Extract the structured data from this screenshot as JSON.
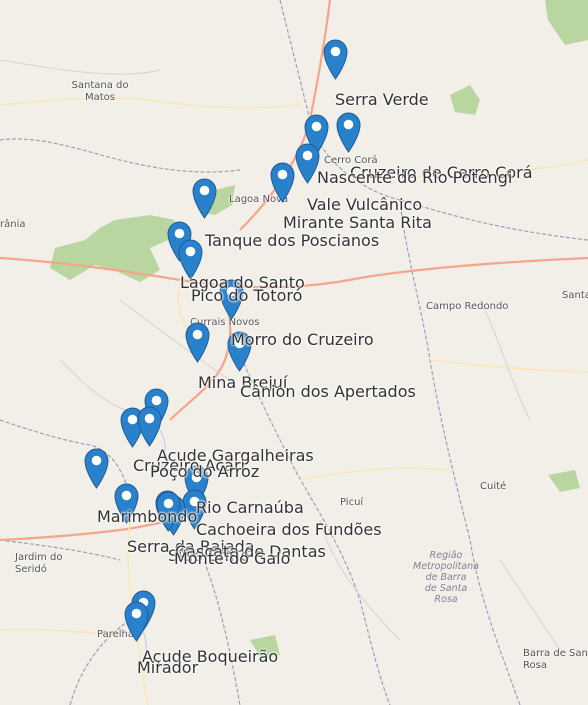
{
  "map": {
    "colors": {
      "marker": "#2a81cb",
      "marker_stroke": "#1f5d94",
      "road": "#f4a58a",
      "green": "#b9d6a0",
      "border": "#a29db3"
    },
    "place_labels": [
      {
        "text": "Santana do\nMatos"
      },
      {
        "text": "Cerro Corá"
      },
      {
        "text": "Lagoa Nova"
      },
      {
        "text": "rânia"
      },
      {
        "text": "Currais Novos"
      },
      {
        "text": "Campo Redondo"
      },
      {
        "text": "Santa"
      },
      {
        "text": "Acari"
      },
      {
        "text": "Cuité"
      },
      {
        "text": "Picuí"
      },
      {
        "text": "Jardim do\nSeridó"
      },
      {
        "text": "Parelhas"
      },
      {
        "text": "Barra de Santa\nRosa"
      }
    ],
    "region_label": {
      "text": "Região\nMetropolitana\nde Barra\nde Santa\nRosa"
    },
    "markers": [
      {
        "name": "Serra Verde",
        "icon": "map-pin-icon"
      },
      {
        "name": "Cruzeiro de Cerro Corá",
        "icon": "map-pin-icon"
      },
      {
        "name": "Nascente do Rio Potengi",
        "icon": "map-pin-icon"
      },
      {
        "name": "Vale Vulcânico",
        "icon": "map-pin-icon"
      },
      {
        "name": "Mirante Santa Rita",
        "icon": "map-pin-icon"
      },
      {
        "name": "Tanque dos Poscianos",
        "icon": "map-pin-icon"
      },
      {
        "name": "Lagoa do Santo",
        "icon": "map-pin-icon"
      },
      {
        "name": "Pico do Totoró",
        "icon": "map-pin-icon"
      },
      {
        "name": "Morro do Cruzeiro",
        "icon": "map-pin-icon"
      },
      {
        "name": "Mina Brejuí",
        "icon": "map-pin-icon"
      },
      {
        "name": "Cânion dos Apertados",
        "icon": "map-pin-icon"
      },
      {
        "name": "Açude Gargalheiras",
        "icon": "map-pin-icon"
      },
      {
        "name": "Cruzeiro Acari",
        "icon": "map-pin-icon"
      },
      {
        "name": "Poço do Arroz",
        "icon": "map-pin-icon"
      },
      {
        "name": "Marimbondo",
        "icon": "map-pin-icon"
      },
      {
        "name": "Rio Carnaúba",
        "icon": "map-pin-icon"
      },
      {
        "name": "Cachoeira dos Fundões",
        "icon": "map-pin-icon"
      },
      {
        "name": "Serra da Rajada",
        "icon": "map-pin-icon"
      },
      {
        "name": "Sítio Ermo",
        "icon": "map-pin-icon"
      },
      {
        "name": "Cascata de Dantas",
        "icon": "map-pin-icon"
      },
      {
        "name": "Monte do Galo",
        "icon": "map-pin-icon"
      },
      {
        "name": "Açude Boqueirão",
        "icon": "map-pin-icon"
      },
      {
        "name": "Mirador",
        "icon": "map-pin-icon"
      }
    ]
  }
}
